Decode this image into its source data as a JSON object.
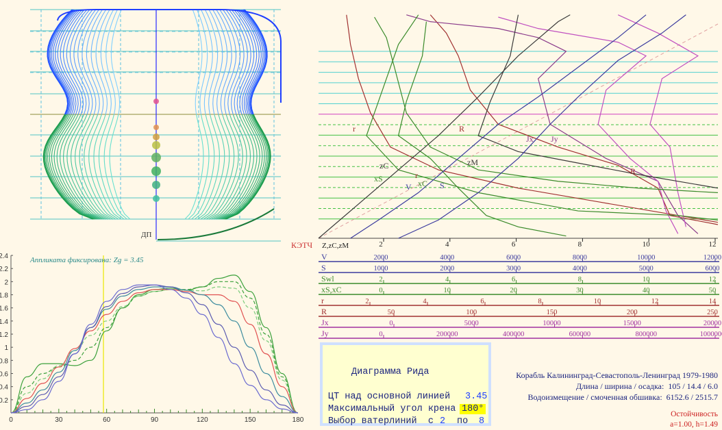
{
  "body_plan": {
    "waterline_labels": [
      "10",
      "9",
      "8",
      "7",
      "6",
      "вл",
      "4",
      "3",
      "2",
      "1"
    ],
    "dp_label": "ДП"
  },
  "hydro": {
    "ktch_label": "КЭТЧ",
    "z_label": "Z,zC,zM",
    "z_ticks": [
      "2",
      "4",
      "6",
      "8",
      "10",
      "12"
    ],
    "scales": [
      {
        "name": "V",
        "color": "#3b3b9e",
        "ticks": [
          "2000",
          "4000",
          "6000",
          "8000",
          "10000",
          "12000"
        ]
      },
      {
        "name": "S",
        "color": "#3b3b9e",
        "ticks": [
          "1000",
          "2000",
          "3000",
          "4000",
          "5000",
          "6000"
        ]
      },
      {
        "name": "Swl",
        "color": "#3a8a2a",
        "ticks": [
          "2",
          "4",
          "6",
          "8",
          "10",
          "12"
        ]
      },
      {
        "name": "xS,xC",
        "color": "#3a8a2a",
        "ticks": [
          "0",
          "10",
          "20",
          "30",
          "40",
          "50"
        ]
      },
      {
        "name": "r",
        "color": "#a03030",
        "ticks": [
          "2",
          "4",
          "6",
          "8",
          "10",
          "12",
          "14"
        ]
      },
      {
        "name": "R",
        "color": "#a03030",
        "ticks": [
          "50",
          "100",
          "150",
          "200",
          "250"
        ]
      },
      {
        "name": "Jx",
        "color": "#a030a0",
        "ticks": [
          "0",
          "5000",
          "10000",
          "15000",
          "20000"
        ]
      },
      {
        "name": "Jy",
        "color": "#a030a0",
        "ticks": [
          "0",
          "200000",
          "400000",
          "600000",
          "800000",
          "1000000"
        ]
      }
    ],
    "curve_labels": [
      "r",
      "R",
      "Jx",
      "Jy",
      "zC",
      "xS",
      "r",
      "zM",
      "V",
      "xC",
      "S",
      "R"
    ]
  },
  "stability": {
    "annotation": "Аппликата фиксирована: Zg = 3.45",
    "y_ticks": [
      "2.4",
      "2.2",
      "2",
      "1.8",
      "1.6",
      "1.4",
      "1.2",
      "1",
      "0.8",
      "0.6",
      "0.4",
      "0.2"
    ],
    "x_ticks": [
      "0",
      "30",
      "60",
      "90",
      "120",
      "150",
      "180"
    ]
  },
  "panel": {
    "title": "Диаграмма Рида",
    "cg_label": "ЦТ над основной линией",
    "cg_value": "3.45",
    "max_angle_label": "Максимальный угол крена",
    "max_angle_value": "180°",
    "wl_label": "Выбор ватерлиний  с",
    "wl_from": "2",
    "wl_to_label": "по",
    "wl_to": "8"
  },
  "ship": {
    "name": "Корабль Калининград-Севастополь-Ленинград 1979-1980",
    "dims_label": "Длина / ширина / осадка:",
    "dims_value": "105 / 14.4 / 6.0",
    "disp_label": "Водоизмещение / смоченная обшивка:",
    "disp_value": "6152.6 / 2515.7"
  },
  "footer": {
    "title": "Остойчивость",
    "params": "a=1.00, h=1.49"
  },
  "chart_data": [
    {
      "type": "line",
      "xlabel": "",
      "ylabel": "",
      "xlim": [
        0,
        180
      ],
      "ylim": [
        0,
        2.4
      ],
      "x": [
        0,
        10,
        20,
        30,
        40,
        50,
        60,
        70,
        80,
        90,
        100,
        110,
        120,
        130,
        140,
        150,
        160,
        170,
        180
      ],
      "series": [
        {
          "values": [
            0,
            0.55,
            0.75,
            0.75,
            0.72,
            0.8,
            1.25,
            1.6,
            1.8,
            1.88,
            1.9,
            1.87,
            1.92,
            2.05,
            2.1,
            1.85,
            1.3,
            0.6,
            0
          ]
        },
        {
          "values": [
            0,
            0.4,
            0.6,
            0.7,
            0.8,
            1.0,
            1.3,
            1.6,
            1.78,
            1.85,
            1.88,
            1.88,
            1.92,
            2.0,
            2.0,
            1.75,
            1.2,
            0.55,
            0
          ]
        },
        {
          "values": [
            0,
            0.3,
            0.52,
            0.72,
            0.95,
            1.18,
            1.4,
            1.62,
            1.78,
            1.85,
            1.88,
            1.87,
            1.86,
            1.92,
            1.9,
            1.6,
            1.1,
            0.5,
            0
          ]
        },
        {
          "values": [
            0,
            0.22,
            0.45,
            0.7,
            0.98,
            1.25,
            1.5,
            1.7,
            1.83,
            1.88,
            1.88,
            1.85,
            1.8,
            1.8,
            1.7,
            1.35,
            0.9,
            0.4,
            0
          ]
        },
        {
          "values": [
            0,
            0.15,
            0.35,
            0.62,
            0.95,
            1.3,
            1.58,
            1.78,
            1.88,
            1.92,
            1.92,
            1.87,
            1.8,
            1.65,
            1.4,
            1.0,
            0.6,
            0.25,
            0
          ]
        },
        {
          "values": [
            0,
            0.1,
            0.28,
            0.55,
            0.9,
            1.3,
            1.62,
            1.82,
            1.92,
            1.95,
            1.92,
            1.83,
            1.65,
            1.35,
            1.0,
            0.65,
            0.35,
            0.12,
            0
          ]
        },
        {
          "values": [
            0,
            0.05,
            0.2,
            0.48,
            0.9,
            1.35,
            1.7,
            1.88,
            1.95,
            1.95,
            1.88,
            1.75,
            1.5,
            1.15,
            0.75,
            0.42,
            0.2,
            0.06,
            0
          ]
        }
      ]
    }
  ]
}
